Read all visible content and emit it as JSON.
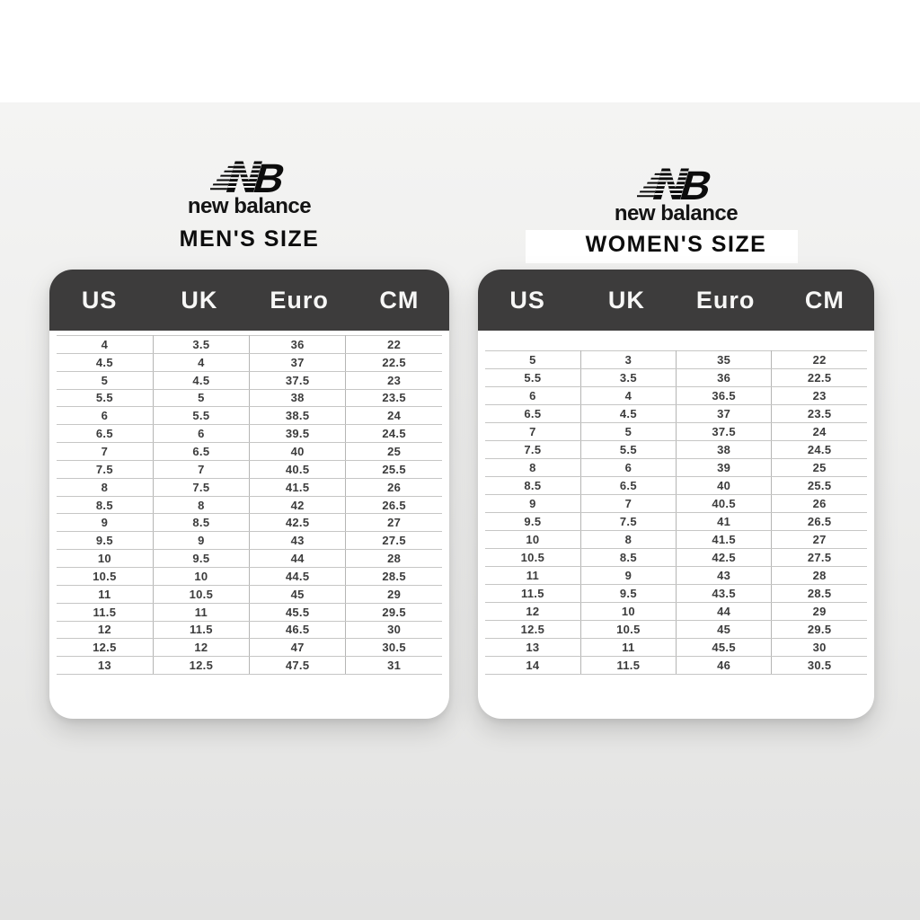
{
  "brand": {
    "wordmark": "new balance",
    "logo_icon": "new-balance-nb-mark"
  },
  "colors": {
    "page_top": "#ffffff",
    "bg_gradient_top": "#f4f4f3",
    "bg_gradient_bottom": "#e2e2e1",
    "card_bg": "#ffffff",
    "header_bg": "#3d3c3c",
    "header_text": "#f7f7f6",
    "cell_text": "#3c3c3c",
    "row_line": "#c6c6c5",
    "column_line": "#b5b5b4",
    "title_text": "#0d0d0d"
  },
  "chart_data": [
    {
      "type": "table",
      "title": "MEN'S SIZE",
      "columns": [
        "US",
        "UK",
        "Euro",
        "CM"
      ],
      "rows": [
        [
          "4",
          "3.5",
          "36",
          "22"
        ],
        [
          "4.5",
          "4",
          "37",
          "22.5"
        ],
        [
          "5",
          "4.5",
          "37.5",
          "23"
        ],
        [
          "5.5",
          "5",
          "38",
          "23.5"
        ],
        [
          "6",
          "5.5",
          "38.5",
          "24"
        ],
        [
          "6.5",
          "6",
          "39.5",
          "24.5"
        ],
        [
          "7",
          "6.5",
          "40",
          "25"
        ],
        [
          "7.5",
          "7",
          "40.5",
          "25.5"
        ],
        [
          "8",
          "7.5",
          "41.5",
          "26"
        ],
        [
          "8.5",
          "8",
          "42",
          "26.5"
        ],
        [
          "9",
          "8.5",
          "42.5",
          "27"
        ],
        [
          "9.5",
          "9",
          "43",
          "27.5"
        ],
        [
          "10",
          "9.5",
          "44",
          "28"
        ],
        [
          "10.5",
          "10",
          "44.5",
          "28.5"
        ],
        [
          "11",
          "10.5",
          "45",
          "29"
        ],
        [
          "11.5",
          "11",
          "45.5",
          "29.5"
        ],
        [
          "12",
          "11.5",
          "46.5",
          "30"
        ],
        [
          "12.5",
          "12",
          "47",
          "30.5"
        ],
        [
          "13",
          "12.5",
          "47.5",
          "31"
        ]
      ]
    },
    {
      "type": "table",
      "title": "WOMEN'S SIZE",
      "columns": [
        "US",
        "UK",
        "Euro",
        "CM"
      ],
      "rows": [
        [
          "5",
          "3",
          "35",
          "22"
        ],
        [
          "5.5",
          "3.5",
          "36",
          "22.5"
        ],
        [
          "6",
          "4",
          "36.5",
          "23"
        ],
        [
          "6.5",
          "4.5",
          "37",
          "23.5"
        ],
        [
          "7",
          "5",
          "37.5",
          "24"
        ],
        [
          "7.5",
          "5.5",
          "38",
          "24.5"
        ],
        [
          "8",
          "6",
          "39",
          "25"
        ],
        [
          "8.5",
          "6.5",
          "40",
          "25.5"
        ],
        [
          "9",
          "7",
          "40.5",
          "26"
        ],
        [
          "9.5",
          "7.5",
          "41",
          "26.5"
        ],
        [
          "10",
          "8",
          "41.5",
          "27"
        ],
        [
          "10.5",
          "8.5",
          "42.5",
          "27.5"
        ],
        [
          "11",
          "9",
          "43",
          "28"
        ],
        [
          "11.5",
          "9.5",
          "43.5",
          "28.5"
        ],
        [
          "12",
          "10",
          "44",
          "29"
        ],
        [
          "12.5",
          "10.5",
          "45",
          "29.5"
        ],
        [
          "13",
          "11",
          "45.5",
          "30"
        ],
        [
          "14",
          "11.5",
          "46",
          "30.5"
        ]
      ]
    }
  ]
}
